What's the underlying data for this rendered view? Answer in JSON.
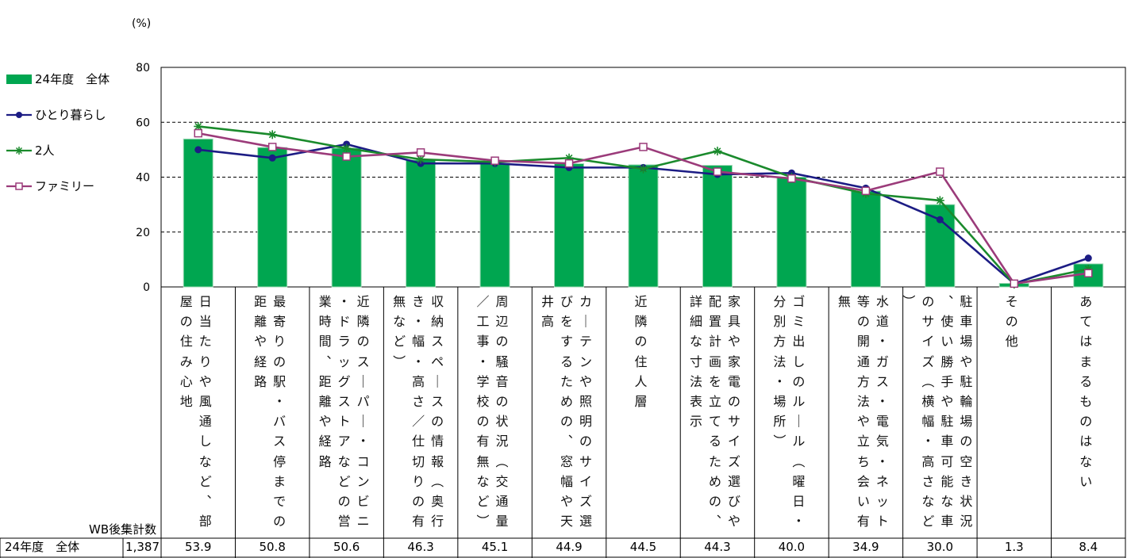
{
  "chart_data": {
    "type": "bar",
    "unit": "(%)",
    "ylim": [
      0,
      80
    ],
    "yticks": [
      "0",
      "20",
      "40",
      "60",
      "80"
    ],
    "grid": true,
    "legend_position": "left",
    "categories": [
      "日当たりや風通しなど、部屋の住み心地",
      "最寄りの駅・バス停までの距離や経路",
      "近隣のスーパー・コンビニ・ドラッグストアなどの営業時間、距離や経路",
      "収納スペースの情報（奥行き・幅・高さ／仕切りの有無など）",
      "周辺の騒音の状況（交通量／工事・学校の有無など）",
      "カーテンや照明のサイズ選びをするための、窓幅や天井高",
      "近隣の住人層",
      "家具や家電のサイズ選びや配置計画を立てるための、詳細な寸法表示",
      "ゴミ出しのルール（曜日・分別方法・場所）",
      "水道・ガス・電気・ネット等の開通方法や立ち会い有無",
      "駐車場や駐輪場の空き状況、使い勝手や駐車可能な車のサイズ（横幅・高さなど）",
      "その他",
      "あてはまるものはない"
    ],
    "series": [
      {
        "name": "24年度　全体",
        "kind": "bar",
        "color": "#00a650",
        "values": [
          53.9,
          50.8,
          50.6,
          46.3,
          45.1,
          44.9,
          44.5,
          44.3,
          40.0,
          34.9,
          30.0,
          1.3,
          8.4
        ]
      },
      {
        "name": "ひとり暮らし",
        "kind": "line",
        "marker": "dot",
        "color": "#1c1c84",
        "values": [
          50.0,
          47.0,
          52.0,
          45.0,
          45.0,
          43.5,
          43.5,
          41.0,
          41.5,
          36.0,
          24.5,
          1.2,
          10.5
        ]
      },
      {
        "name": "2人",
        "kind": "line",
        "marker": "star",
        "color": "#1a8a2c",
        "values": [
          58.5,
          55.5,
          50.5,
          46.5,
          45.5,
          47.0,
          43.0,
          49.5,
          40.0,
          34.0,
          31.5,
          1.0,
          6.5
        ]
      },
      {
        "name": "ファミリー",
        "kind": "line",
        "marker": "square",
        "color": "#9b3b7a",
        "values": [
          56.0,
          51.0,
          47.5,
          49.0,
          46.0,
          45.0,
          51.0,
          42.0,
          39.5,
          35.0,
          42.0,
          1.2,
          5.0
        ]
      }
    ]
  },
  "table": {
    "sample_header": "WB後集計数",
    "row_label": "24年度　全体",
    "sample_size": "1,387",
    "values": [
      "53.9",
      "50.8",
      "50.6",
      "46.3",
      "45.1",
      "44.9",
      "44.5",
      "44.3",
      "40.0",
      "34.9",
      "30.0",
      "1.3",
      "8.4"
    ]
  }
}
